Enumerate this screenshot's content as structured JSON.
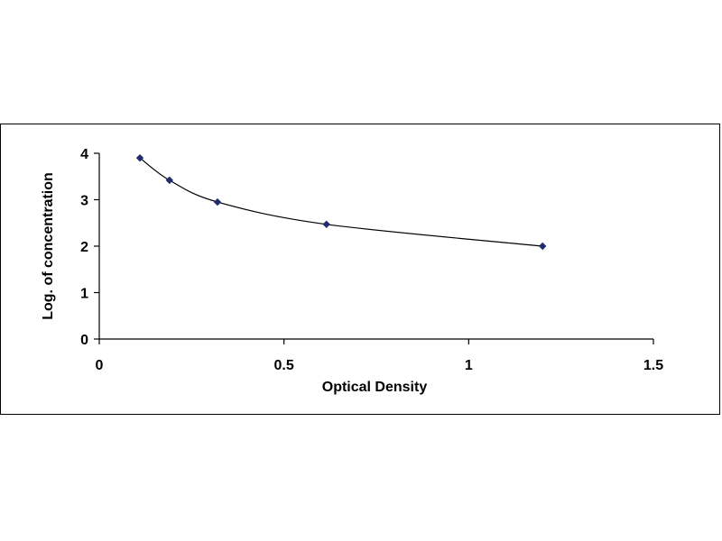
{
  "chart_data": {
    "type": "scatter",
    "title": "",
    "xlabel": "Optical Density",
    "ylabel": "Log. of concentration",
    "xlim": [
      0,
      1.5
    ],
    "ylim": [
      0,
      4
    ],
    "x_ticks": [
      0,
      0.5,
      1,
      1.5
    ],
    "x_tick_labels": [
      "0",
      "0.5",
      "1",
      "1.5"
    ],
    "y_ticks": [
      0,
      1,
      2,
      3,
      4
    ],
    "y_tick_labels": [
      "0",
      "1",
      "2",
      "3",
      "4"
    ],
    "grid": false,
    "legend": "none",
    "series": [
      {
        "x": [
          0.11,
          0.19,
          0.32,
          0.615,
          1.2
        ],
        "y": [
          3.9,
          3.42,
          2.95,
          2.47,
          2.0
        ],
        "marker": "diamond",
        "trendline": "smooth-curve",
        "color": "#1f2d6b"
      }
    ]
  }
}
